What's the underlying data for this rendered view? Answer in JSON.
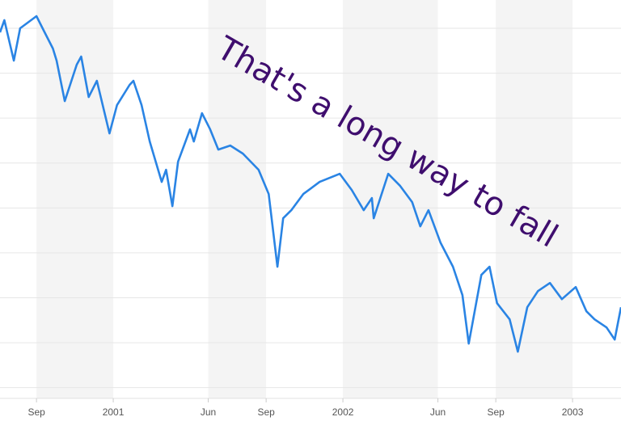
{
  "chart_data": {
    "type": "line",
    "annotation": "That's a long way to fall",
    "x": [
      "2000-07-05",
      "2000-07-12",
      "2000-07-27",
      "2000-08-06",
      "2000-09-01",
      "2000-09-14",
      "2000-09-27",
      "2000-10-03",
      "2000-10-16",
      "2000-11-04",
      "2000-11-11",
      "2000-11-23",
      "2000-12-06",
      "2000-12-26",
      "2001-01-07",
      "2001-01-27",
      "2001-02-02",
      "2001-02-15",
      "2001-02-28",
      "2001-03-19",
      "2001-03-26",
      "2001-04-05",
      "2001-04-14",
      "2001-05-03",
      "2001-05-09",
      "2001-05-22",
      "2001-06-04",
      "2001-06-17",
      "2001-07-06",
      "2001-07-26",
      "2001-08-20",
      "2001-09-05",
      "2001-09-19",
      "2001-09-28",
      "2001-10-11",
      "2001-10-30",
      "2001-11-25",
      "2001-12-27",
      "2002-01-15",
      "2002-02-03",
      "2002-02-16",
      "2002-02-19",
      "2002-03-14",
      "2002-04-02",
      "2002-04-21",
      "2002-05-04",
      "2002-05-17",
      "2002-06-05",
      "2002-06-25",
      "2002-07-10",
      "2002-07-20",
      "2002-08-09",
      "2002-08-22",
      "2002-09-03",
      "2002-09-23",
      "2002-10-06",
      "2002-10-21",
      "2002-11-07",
      "2002-11-26",
      "2002-12-15",
      "2003-01-06",
      "2003-01-23",
      "2003-02-05",
      "2003-02-24",
      "2003-03-09",
      "2003-03-19"
    ],
    "series": [
      {
        "color": "#2a84e4",
        "values": [
          1491,
          1518,
          1428,
          1500,
          1527,
          1491,
          1455,
          1428,
          1338,
          1419,
          1437,
          1347,
          1383,
          1266,
          1329,
          1374,
          1383,
          1329,
          1248,
          1158,
          1185,
          1104,
          1203,
          1275,
          1248,
          1311,
          1275,
          1230,
          1239,
          1221,
          1185,
          1131,
          969,
          1077,
          1095,
          1131,
          1158,
          1176,
          1140,
          1095,
          1122,
          1077,
          1176,
          1149,
          1113,
          1059,
          1095,
          1023,
          969,
          906,
          798,
          951,
          969,
          888,
          852,
          780,
          879,
          915,
          933,
          897,
          924,
          870,
          852,
          834,
          807,
          879
        ]
      }
    ],
    "xlim": [
      "2000-07-05",
      "2003-03-19"
    ],
    "xticks": [
      {
        "value": "2000-09-01",
        "label": "Sep"
      },
      {
        "value": "2001-01-01",
        "label": "2001"
      },
      {
        "value": "2001-06-01",
        "label": "Jun"
      },
      {
        "value": "2001-09-01",
        "label": "Sep"
      },
      {
        "value": "2002-01-01",
        "label": "2002"
      },
      {
        "value": "2002-06-01",
        "label": "Jun"
      },
      {
        "value": "2002-09-01",
        "label": "Sep"
      },
      {
        "value": "2003-01-01",
        "label": "2003"
      }
    ],
    "ylim": [
      676,
      1563
    ],
    "ygrid": [
      700,
      800,
      900,
      1000,
      1100,
      1200,
      1300,
      1400,
      1500
    ],
    "grid": true,
    "shaded_bands": true
  }
}
